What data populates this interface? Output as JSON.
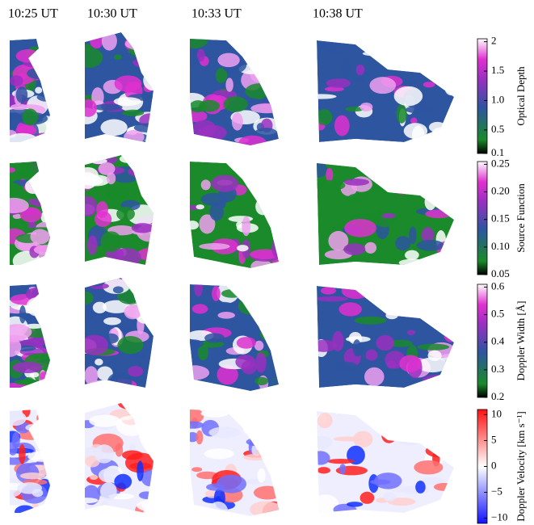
{
  "columns": [
    "10:25 UT",
    "10:30 UT",
    "10:33 UT",
    "10:38 UT"
  ],
  "rows": [
    {
      "colorbar": {
        "label": "Optical Depth",
        "lim": [
          0.1,
          2.05
        ],
        "ticks": [
          2,
          1.5,
          {
            "value": 1,
            "label": "1.0"
          },
          0.5,
          0.1
        ]
      }
    },
    {
      "colorbar": {
        "label": "Source Function",
        "lim": [
          0.05,
          0.255
        ],
        "ticks": [
          0.25,
          {
            "value": 0.2,
            "label": "0.20"
          },
          0.15,
          {
            "value": 0.1,
            "label": "0.10"
          },
          0.05
        ]
      }
    },
    {
      "colorbar": {
        "label": "Doppler Width [Å]",
        "lim": [
          0.2,
          0.61
        ],
        "ticks": [
          0.6,
          0.5,
          0.4,
          0.3,
          0.2
        ]
      }
    },
    {
      "colorbar": {
        "label": "Doppler Velocity [km s⁻¹]",
        "lim": [
          -11,
          11
        ],
        "ticks": [
          10,
          5,
          0,
          {
            "value": -5,
            "label": "−5"
          },
          {
            "value": -10,
            "label": "−10"
          }
        ]
      }
    }
  ]
}
